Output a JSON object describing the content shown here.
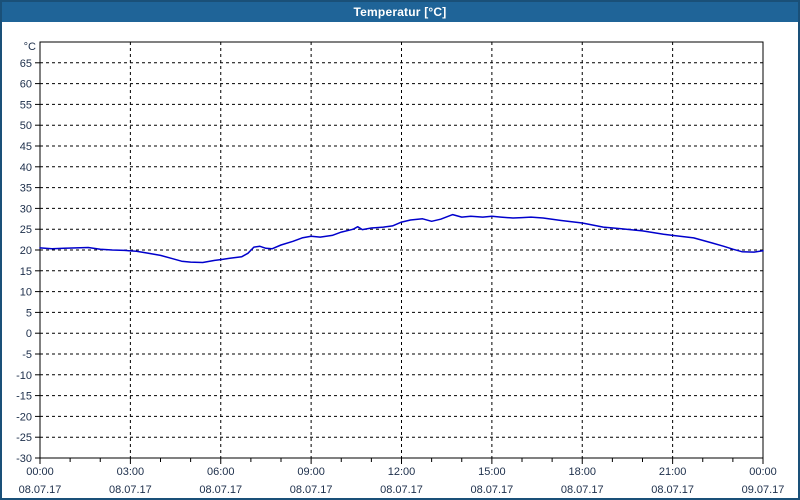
{
  "window": {
    "title": "Temperatur [°C]"
  },
  "colors": {
    "titlebar_bg": "#1f6498",
    "titlebar_text": "#ffffff",
    "window_border": "#1a5078",
    "plot_bg": "#ffffff",
    "plot_border": "#000000",
    "grid": "#000000",
    "line": "#0000cc",
    "label_text": "#1c2e4a"
  },
  "chart_data": {
    "type": "line",
    "title": "Temperatur [°C]",
    "ylabel_unit": "°C",
    "ylim": [
      -30,
      70
    ],
    "y_tick_step": 5,
    "y_ticks": [
      65,
      60,
      55,
      50,
      45,
      40,
      35,
      30,
      25,
      20,
      15,
      10,
      5,
      0,
      -5,
      -10,
      -15,
      -20,
      -25,
      -30
    ],
    "xlim_hours": [
      0,
      24
    ],
    "x_minor_tick_hours": 1,
    "grid": "dashed",
    "x_ticks": [
      {
        "hour": 0,
        "time": "00:00",
        "date": "08.07.17"
      },
      {
        "hour": 3,
        "time": "03:00",
        "date": "08.07.17"
      },
      {
        "hour": 6,
        "time": "06:00",
        "date": "08.07.17"
      },
      {
        "hour": 9,
        "time": "09:00",
        "date": "08.07.17"
      },
      {
        "hour": 12,
        "time": "12:00",
        "date": "08.07.17"
      },
      {
        "hour": 15,
        "time": "15:00",
        "date": "08.07.17"
      },
      {
        "hour": 18,
        "time": "18:00",
        "date": "08.07.17"
      },
      {
        "hour": 21,
        "time": "21:00",
        "date": "08.07.17"
      },
      {
        "hour": 24,
        "time": "00:00",
        "date": "09.07.17"
      }
    ],
    "series": [
      {
        "name": "Temperatur",
        "x_hours": [
          0,
          0.4,
          0.8,
          1.2,
          1.6,
          2,
          2.4,
          2.8,
          3.2,
          3.6,
          4,
          4.4,
          4.7,
          5,
          5.4,
          5.8,
          6,
          6.3,
          6.7,
          6.9,
          7.1,
          7.3,
          7.5,
          7.7,
          8,
          8.4,
          8.7,
          9,
          9.3,
          9.7,
          10,
          10.4,
          10.55,
          10.7,
          11,
          11.4,
          11.7,
          12,
          12.3,
          12.7,
          13,
          13.3,
          13.7,
          14,
          14.3,
          14.7,
          15,
          15.3,
          15.7,
          16,
          16.3,
          16.7,
          17.3,
          18,
          18.7,
          19.3,
          20,
          20.7,
          21,
          21.7,
          22.3,
          22.7,
          23,
          23.3,
          23.7,
          24
        ],
        "values": [
          20.5,
          20.3,
          20.4,
          20.5,
          20.6,
          20.2,
          20.0,
          19.9,
          19.7,
          19.2,
          18.7,
          17.9,
          17.3,
          17.1,
          17.0,
          17.5,
          17.7,
          18.0,
          18.4,
          19.2,
          20.7,
          20.9,
          20.4,
          20.3,
          21.2,
          22.1,
          22.9,
          23.3,
          23.1,
          23.5,
          24.3,
          25.0,
          25.6,
          24.9,
          25.3,
          25.5,
          25.8,
          26.7,
          27.2,
          27.5,
          26.9,
          27.4,
          28.5,
          27.9,
          28.1,
          27.9,
          28.1,
          27.9,
          27.7,
          27.8,
          27.9,
          27.7,
          27.1,
          26.5,
          25.5,
          25.1,
          24.6,
          23.8,
          23.5,
          22.9,
          21.7,
          20.9,
          20.2,
          19.6,
          19.5,
          19.8
        ]
      }
    ]
  }
}
